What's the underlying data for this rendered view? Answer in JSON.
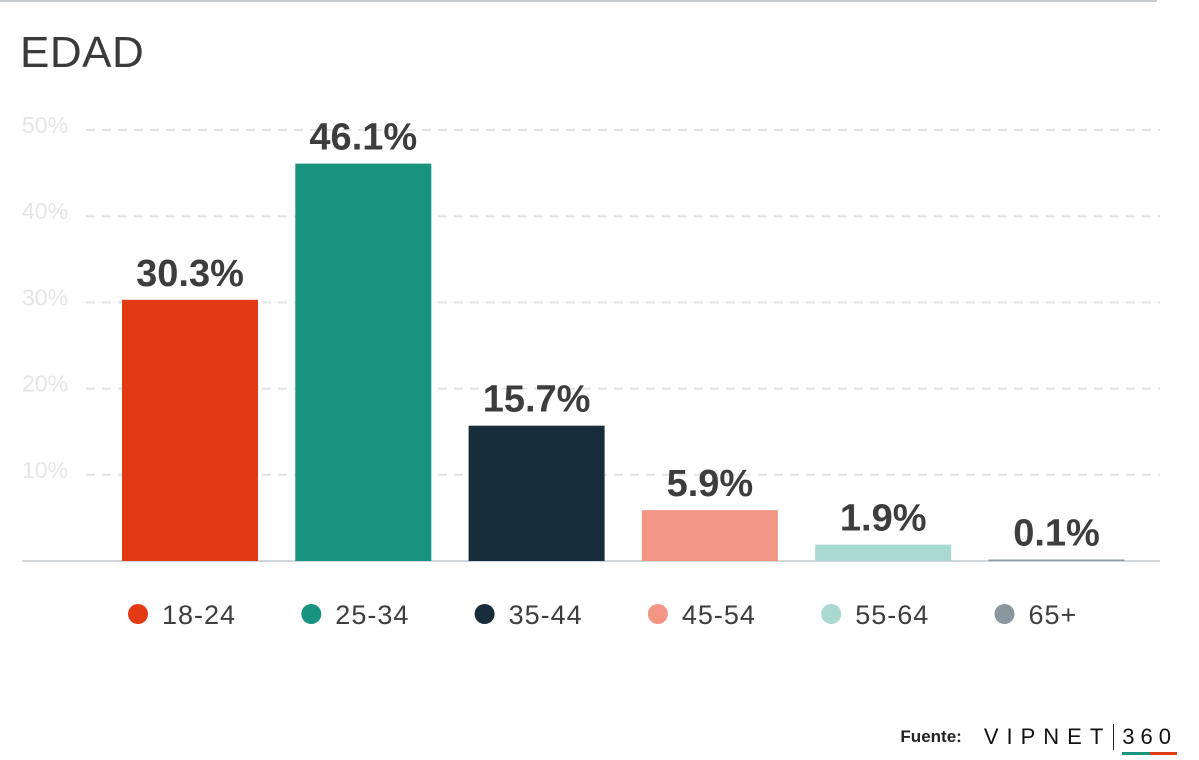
{
  "title": "EDAD",
  "source": {
    "label": "Fuente:",
    "brand": "VIPNET",
    "brand_number": "360"
  },
  "colors": {
    "grid": "#e2e4e6",
    "baseline": "#d4d7da",
    "brand_green": "#17937f",
    "brand_red": "#e23a12"
  },
  "chart_data": {
    "type": "bar",
    "title": "EDAD",
    "xlabel": "",
    "ylabel": "",
    "ylim": [
      0,
      50
    ],
    "yticks": [
      10,
      20,
      30,
      40,
      50
    ],
    "ytick_labels": [
      "10%",
      "20%",
      "30%",
      "40%",
      "50%"
    ],
    "grid": true,
    "legend_position": "bottom",
    "categories": [
      "18-24",
      "25-34",
      "35-44",
      "45-54",
      "55-64",
      "65+"
    ],
    "values": [
      30.3,
      46.1,
      15.7,
      5.9,
      1.9,
      0.1
    ],
    "value_labels": [
      "30.3%",
      "46.1%",
      "15.7%",
      "5.9%",
      "1.9%",
      "0.1%"
    ],
    "bar_colors": [
      "#e23a12",
      "#17937f",
      "#182d3c",
      "#f39584",
      "#a9d9d0",
      "#8a979e"
    ]
  }
}
